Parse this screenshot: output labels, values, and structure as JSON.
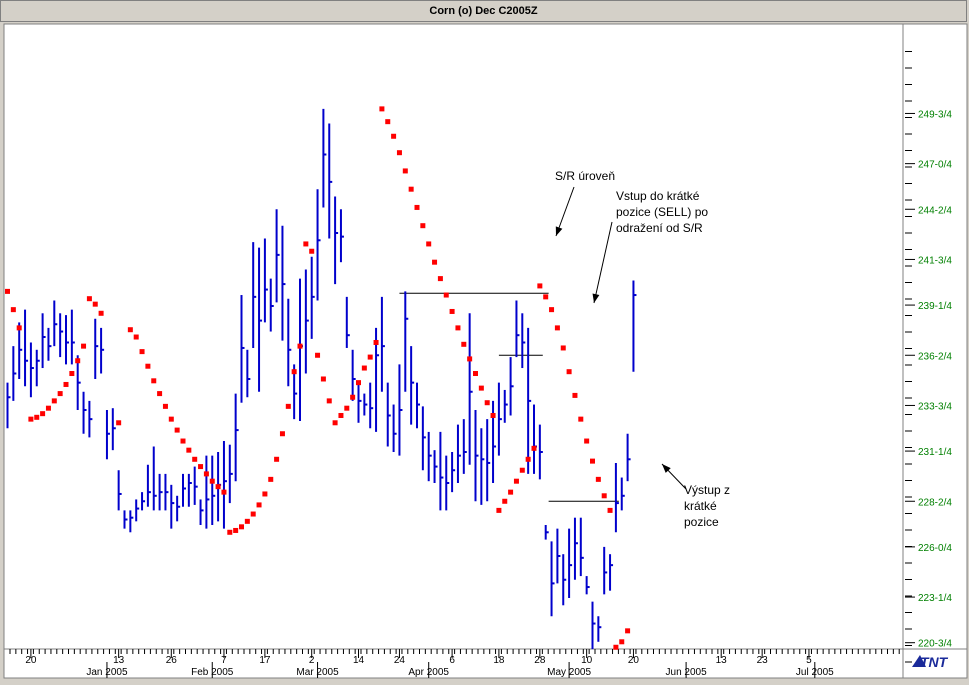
{
  "window": {
    "title": "Corn (o) Dec C2005Z"
  },
  "logo": {
    "text": "TNT"
  },
  "colors": {
    "bars": "#0000cc",
    "sar": "#ff0000",
    "axis_text": "#008000",
    "background": "#ffffff",
    "lines": "#000000"
  },
  "chart_data": {
    "type": "ohlc",
    "title": "Corn (o) Dec C2005Z",
    "y_ticks": [
      {
        "label": "220-3/4",
        "value": 220.75
      },
      {
        "label": "223-1/4",
        "value": 223.25
      },
      {
        "label": "226-0/4",
        "value": 226.0
      },
      {
        "label": "228-2/4",
        "value": 228.5
      },
      {
        "label": "231-1/4",
        "value": 231.25
      },
      {
        "label": "233-3/4",
        "value": 233.75
      },
      {
        "label": "236-2/4",
        "value": 236.5
      },
      {
        "label": "239-1/4",
        "value": 239.25
      },
      {
        "label": "241-3/4",
        "value": 241.75
      },
      {
        "label": "244-2/4",
        "value": 244.5
      },
      {
        "label": "247-0/4",
        "value": 247.0
      },
      {
        "label": "249-3/4",
        "value": 249.75
      }
    ],
    "x_ticks": [
      {
        "label": "20",
        "index": 4
      },
      {
        "label": "13",
        "index": 19
      },
      {
        "label": "26",
        "index": 28
      },
      {
        "label": "7",
        "index": 37
      },
      {
        "label": "17",
        "index": 44
      },
      {
        "label": "2",
        "index": 52
      },
      {
        "label": "14",
        "index": 60
      },
      {
        "label": "24",
        "index": 67
      },
      {
        "label": "6",
        "index": 76
      },
      {
        "label": "18",
        "index": 84
      },
      {
        "label": "28",
        "index": 91
      },
      {
        "label": "10",
        "index": 99
      },
      {
        "label": "20",
        "index": 107
      },
      {
        "label": "13",
        "index": 122
      },
      {
        "label": "23",
        "index": 129
      },
      {
        "label": "5",
        "index": 137
      }
    ],
    "month_labels": [
      {
        "label": "Jan 2005",
        "index": 17
      },
      {
        "label": "Feb 2005",
        "index": 35
      },
      {
        "label": "Mar 2005",
        "index": 53
      },
      {
        "label": "Apr 2005",
        "index": 72
      },
      {
        "label": "May 2005",
        "index": 96
      },
      {
        "label": "Jun 2005",
        "index": 116
      },
      {
        "label": "Jul 2005",
        "index": 138
      }
    ],
    "bars": [
      {
        "x": 0,
        "h": 235.0,
        "l": 232.5,
        "c": 234.2
      },
      {
        "x": 1,
        "h": 237.0,
        "l": 234.0,
        "c": 235.5
      },
      {
        "x": 2,
        "h": 238.3,
        "l": 235.2,
        "c": 236.8
      },
      {
        "x": 3,
        "h": 239.0,
        "l": 234.8,
        "c": 236.2
      },
      {
        "x": 4,
        "h": 237.2,
        "l": 234.2,
        "c": 235.8
      },
      {
        "x": 5,
        "h": 236.8,
        "l": 234.8,
        "c": 236.2
      },
      {
        "x": 6,
        "h": 238.8,
        "l": 235.8,
        "c": 237.5
      },
      {
        "x": 7,
        "h": 238.0,
        "l": 236.2,
        "c": 237.0
      },
      {
        "x": 8,
        "h": 239.5,
        "l": 237.0,
        "c": 238.2
      },
      {
        "x": 9,
        "h": 238.8,
        "l": 236.4,
        "c": 237.8
      },
      {
        "x": 10,
        "h": 238.7,
        "l": 236.0,
        "c": 237.2
      },
      {
        "x": 11,
        "h": 239.0,
        "l": 236.0,
        "c": 237.2
      },
      {
        "x": 12,
        "h": 236.5,
        "l": 233.5,
        "c": 235.0
      },
      {
        "x": 13,
        "h": 234.5,
        "l": 232.2,
        "c": 233.5
      },
      {
        "x": 14,
        "h": 234.0,
        "l": 232.0,
        "c": 233.0
      },
      {
        "x": 15,
        "h": 238.5,
        "l": 235.2,
        "c": 237.0
      },
      {
        "x": 16,
        "h": 238.0,
        "l": 235.5,
        "c": 236.8
      },
      {
        "x": 17,
        "h": 233.5,
        "l": 230.8,
        "c": 232.2
      },
      {
        "x": 18,
        "h": 233.6,
        "l": 231.3,
        "c": 232.5
      },
      {
        "x": 19,
        "h": 230.2,
        "l": 228.0,
        "c": 228.9
      },
      {
        "x": 20,
        "h": 228.0,
        "l": 227.0,
        "c": 227.5
      },
      {
        "x": 21,
        "h": 228.0,
        "l": 226.8,
        "c": 227.6
      },
      {
        "x": 22,
        "h": 228.6,
        "l": 227.4,
        "c": 228.1
      },
      {
        "x": 23,
        "h": 229.0,
        "l": 228.0,
        "c": 228.5
      },
      {
        "x": 24,
        "h": 230.5,
        "l": 228.2,
        "c": 229.0
      },
      {
        "x": 25,
        "h": 231.5,
        "l": 228.0,
        "c": 228.8
      },
      {
        "x": 26,
        "h": 230.0,
        "l": 228.0,
        "c": 229.0
      },
      {
        "x": 27,
        "h": 230.0,
        "l": 228.0,
        "c": 229.0
      },
      {
        "x": 28,
        "h": 229.4,
        "l": 227.0,
        "c": 228.4
      },
      {
        "x": 29,
        "h": 228.8,
        "l": 227.4,
        "c": 228.2
      },
      {
        "x": 30,
        "h": 230.0,
        "l": 228.2,
        "c": 229.2
      },
      {
        "x": 31,
        "h": 230.0,
        "l": 228.2,
        "c": 229.5
      },
      {
        "x": 32,
        "h": 230.4,
        "l": 228.3,
        "c": 229.3
      },
      {
        "x": 33,
        "h": 228.6,
        "l": 227.2,
        "c": 228.0
      },
      {
        "x": 34,
        "h": 231.0,
        "l": 227.0,
        "c": 228.6
      },
      {
        "x": 35,
        "h": 231.0,
        "l": 227.2,
        "c": 228.8
      },
      {
        "x": 36,
        "h": 231.2,
        "l": 227.4,
        "c": 229.4
      },
      {
        "x": 37,
        "h": 231.8,
        "l": 227.0,
        "c": 229.6
      },
      {
        "x": 38,
        "h": 231.6,
        "l": 228.4,
        "c": 230.0
      },
      {
        "x": 39,
        "h": 234.4,
        "l": 229.6,
        "c": 232.4
      },
      {
        "x": 40,
        "h": 239.8,
        "l": 233.9,
        "c": 236.9
      },
      {
        "x": 41,
        "h": 236.8,
        "l": 234.2,
        "c": 235.2
      },
      {
        "x": 42,
        "h": 242.7,
        "l": 236.9,
        "c": 239.7
      },
      {
        "x": 43,
        "h": 242.4,
        "l": 234.5,
        "c": 238.4
      },
      {
        "x": 44,
        "h": 242.9,
        "l": 238.3,
        "c": 240.1
      },
      {
        "x": 45,
        "h": 240.7,
        "l": 237.8,
        "c": 239.2
      },
      {
        "x": 46,
        "h": 244.5,
        "l": 239.4,
        "c": 242.0
      },
      {
        "x": 47,
        "h": 243.6,
        "l": 237.3,
        "c": 240.4
      },
      {
        "x": 48,
        "h": 239.6,
        "l": 234.8,
        "c": 236.8
      },
      {
        "x": 49,
        "h": 236.0,
        "l": 233.0,
        "c": 234.4
      },
      {
        "x": 50,
        "h": 240.7,
        "l": 232.9,
        "c": 237.0
      },
      {
        "x": 51,
        "h": 241.2,
        "l": 235.5,
        "c": 238.4
      },
      {
        "x": 52,
        "h": 241.9,
        "l": 237.4,
        "c": 239.7
      },
      {
        "x": 53,
        "h": 245.6,
        "l": 239.5,
        "c": 242.8
      },
      {
        "x": 54,
        "h": 250.0,
        "l": 244.6,
        "c": 247.5
      },
      {
        "x": 55,
        "h": 249.2,
        "l": 242.9,
        "c": 246.0
      },
      {
        "x": 56,
        "h": 245.2,
        "l": 240.4,
        "c": 243.2
      },
      {
        "x": 57,
        "h": 244.5,
        "l": 241.6,
        "c": 243.0
      },
      {
        "x": 58,
        "h": 239.7,
        "l": 236.9,
        "c": 237.6
      },
      {
        "x": 59,
        "h": 236.8,
        "l": 234.0,
        "c": 235.2
      },
      {
        "x": 60,
        "h": 235.0,
        "l": 232.8,
        "c": 234.0
      },
      {
        "x": 61,
        "h": 234.4,
        "l": 233.2,
        "c": 233.8
      },
      {
        "x": 62,
        "h": 235.0,
        "l": 232.5,
        "c": 233.6
      },
      {
        "x": 63,
        "h": 238.0,
        "l": 232.3,
        "c": 236.5
      },
      {
        "x": 64,
        "h": 239.7,
        "l": 234.5,
        "c": 237.0
      },
      {
        "x": 65,
        "h": 235.0,
        "l": 231.5,
        "c": 233.2
      },
      {
        "x": 66,
        "h": 233.8,
        "l": 231.2,
        "c": 232.2
      },
      {
        "x": 67,
        "h": 236.0,
        "l": 231.0,
        "c": 233.5
      },
      {
        "x": 68,
        "h": 240.0,
        "l": 234.5,
        "c": 238.5
      },
      {
        "x": 69,
        "h": 237.0,
        "l": 232.7,
        "c": 235.0
      },
      {
        "x": 70,
        "h": 235.0,
        "l": 232.5,
        "c": 233.8
      },
      {
        "x": 71,
        "h": 233.7,
        "l": 230.2,
        "c": 232.0
      },
      {
        "x": 72,
        "h": 232.3,
        "l": 229.6,
        "c": 231.0
      },
      {
        "x": 73,
        "h": 231.3,
        "l": 229.5,
        "c": 230.4
      },
      {
        "x": 74,
        "h": 232.3,
        "l": 228.0,
        "c": 229.8
      },
      {
        "x": 75,
        "h": 231.0,
        "l": 228.0,
        "c": 229.5
      },
      {
        "x": 76,
        "h": 231.2,
        "l": 229.0,
        "c": 230.2
      },
      {
        "x": 77,
        "h": 232.7,
        "l": 229.5,
        "c": 231.0
      },
      {
        "x": 78,
        "h": 233.0,
        "l": 230.0,
        "c": 231.2
      },
      {
        "x": 79,
        "h": 238.8,
        "l": 230.5,
        "c": 234.5
      },
      {
        "x": 80,
        "h": 233.5,
        "l": 228.5,
        "c": 231.0
      },
      {
        "x": 81,
        "h": 232.5,
        "l": 228.3,
        "c": 230.8
      },
      {
        "x": 82,
        "h": 233.0,
        "l": 228.5,
        "c": 230.6
      },
      {
        "x": 83,
        "h": 234.0,
        "l": 229.5,
        "c": 231.5
      },
      {
        "x": 84,
        "h": 235.0,
        "l": 231.0,
        "c": 233.0
      },
      {
        "x": 85,
        "h": 234.6,
        "l": 232.8,
        "c": 233.8
      },
      {
        "x": 86,
        "h": 236.4,
        "l": 233.2,
        "c": 234.8
      },
      {
        "x": 87,
        "h": 239.5,
        "l": 236.4,
        "c": 237.6
      },
      {
        "x": 88,
        "h": 238.8,
        "l": 235.8,
        "c": 237.2
      },
      {
        "x": 89,
        "h": 238.0,
        "l": 230.0,
        "c": 234.0
      },
      {
        "x": 90,
        "h": 233.8,
        "l": 230.0,
        "c": 231.5
      },
      {
        "x": 91,
        "h": 232.7,
        "l": 229.7,
        "c": 231.2
      },
      {
        "x": 92,
        "h": 227.2,
        "l": 226.4,
        "c": 226.8
      },
      {
        "x": 93,
        "h": 226.3,
        "l": 222.2,
        "c": 224.0
      },
      {
        "x": 94,
        "h": 227.0,
        "l": 224.0,
        "c": 225.5
      },
      {
        "x": 95,
        "h": 225.6,
        "l": 222.8,
        "c": 224.2
      },
      {
        "x": 96,
        "h": 227.0,
        "l": 223.2,
        "c": 225.0
      },
      {
        "x": 97,
        "h": 227.6,
        "l": 224.2,
        "c": 226.2
      },
      {
        "x": 98,
        "h": 227.6,
        "l": 224.4,
        "c": 225.4
      },
      {
        "x": 99,
        "h": 224.4,
        "l": 223.4,
        "c": 223.8
      },
      {
        "x": 100,
        "h": 223.0,
        "l": 220.4,
        "c": 221.8
      },
      {
        "x": 101,
        "h": 222.2,
        "l": 220.8,
        "c": 221.6
      },
      {
        "x": 102,
        "h": 226.0,
        "l": 223.4,
        "c": 224.6
      },
      {
        "x": 103,
        "h": 225.6,
        "l": 223.6,
        "c": 225.0
      },
      {
        "x": 104,
        "h": 230.6,
        "l": 226.8,
        "c": 228.4
      },
      {
        "x": 105,
        "h": 229.8,
        "l": 228.0,
        "c": 228.8
      },
      {
        "x": 106,
        "h": 232.2,
        "l": 229.6,
        "c": 230.8
      },
      {
        "x": 107,
        "h": 240.6,
        "l": 235.6,
        "c": 239.8
      }
    ],
    "sar": [
      {
        "x": 0,
        "y": 240.0
      },
      {
        "x": 1,
        "y": 239.0
      },
      {
        "x": 2,
        "y": 238.0
      },
      {
        "x": 4,
        "y": 233.0
      },
      {
        "x": 5,
        "y": 233.1
      },
      {
        "x": 6,
        "y": 233.3
      },
      {
        "x": 7,
        "y": 233.6
      },
      {
        "x": 8,
        "y": 234.0
      },
      {
        "x": 9,
        "y": 234.4
      },
      {
        "x": 10,
        "y": 234.9
      },
      {
        "x": 11,
        "y": 235.5
      },
      {
        "x": 12,
        "y": 236.2
      },
      {
        "x": 13,
        "y": 237.0
      },
      {
        "x": 14,
        "y": 239.6
      },
      {
        "x": 15,
        "y": 239.3
      },
      {
        "x": 16,
        "y": 238.8
      },
      {
        "x": 19,
        "y": 232.8
      },
      {
        "x": 21,
        "y": 237.9
      },
      {
        "x": 22,
        "y": 237.5
      },
      {
        "x": 23,
        "y": 236.7
      },
      {
        "x": 24,
        "y": 235.9
      },
      {
        "x": 25,
        "y": 235.1
      },
      {
        "x": 26,
        "y": 234.4
      },
      {
        "x": 27,
        "y": 233.7
      },
      {
        "x": 28,
        "y": 233.0
      },
      {
        "x": 29,
        "y": 232.4
      },
      {
        "x": 30,
        "y": 231.8
      },
      {
        "x": 31,
        "y": 231.3
      },
      {
        "x": 32,
        "y": 230.8
      },
      {
        "x": 33,
        "y": 230.4
      },
      {
        "x": 34,
        "y": 230.0
      },
      {
        "x": 35,
        "y": 229.6
      },
      {
        "x": 36,
        "y": 229.3
      },
      {
        "x": 37,
        "y": 229.0
      },
      {
        "x": 38,
        "y": 226.8
      },
      {
        "x": 39,
        "y": 226.9
      },
      {
        "x": 40,
        "y": 227.1
      },
      {
        "x": 41,
        "y": 227.4
      },
      {
        "x": 42,
        "y": 227.8
      },
      {
        "x": 43,
        "y": 228.3
      },
      {
        "x": 44,
        "y": 228.9
      },
      {
        "x": 45,
        "y": 229.7
      },
      {
        "x": 46,
        "y": 230.8
      },
      {
        "x": 47,
        "y": 232.2
      },
      {
        "x": 48,
        "y": 233.7
      },
      {
        "x": 49,
        "y": 235.6
      },
      {
        "x": 50,
        "y": 237.0
      },
      {
        "x": 51,
        "y": 242.6
      },
      {
        "x": 52,
        "y": 242.2
      },
      {
        "x": 53,
        "y": 236.5
      },
      {
        "x": 54,
        "y": 235.2
      },
      {
        "x": 55,
        "y": 234.0
      },
      {
        "x": 56,
        "y": 232.8
      },
      {
        "x": 57,
        "y": 233.2
      },
      {
        "x": 58,
        "y": 233.6
      },
      {
        "x": 59,
        "y": 234.2
      },
      {
        "x": 60,
        "y": 235.0
      },
      {
        "x": 61,
        "y": 235.8
      },
      {
        "x": 62,
        "y": 236.4
      },
      {
        "x": 63,
        "y": 237.2
      },
      {
        "x": 64,
        "y": 250.0
      },
      {
        "x": 65,
        "y": 249.3
      },
      {
        "x": 66,
        "y": 248.5
      },
      {
        "x": 67,
        "y": 247.6
      },
      {
        "x": 68,
        "y": 246.6
      },
      {
        "x": 69,
        "y": 245.6
      },
      {
        "x": 70,
        "y": 244.6
      },
      {
        "x": 71,
        "y": 243.6
      },
      {
        "x": 72,
        "y": 242.6
      },
      {
        "x": 73,
        "y": 241.6
      },
      {
        "x": 74,
        "y": 240.7
      },
      {
        "x": 75,
        "y": 239.8
      },
      {
        "x": 76,
        "y": 238.9
      },
      {
        "x": 77,
        "y": 238.0
      },
      {
        "x": 78,
        "y": 237.1
      },
      {
        "x": 79,
        "y": 236.3
      },
      {
        "x": 80,
        "y": 235.5
      },
      {
        "x": 81,
        "y": 234.7
      },
      {
        "x": 82,
        "y": 233.9
      },
      {
        "x": 83,
        "y": 233.2
      },
      {
        "x": 84,
        "y": 228.0
      },
      {
        "x": 85,
        "y": 228.5
      },
      {
        "x": 86,
        "y": 229.0
      },
      {
        "x": 87,
        "y": 229.6
      },
      {
        "x": 88,
        "y": 230.2
      },
      {
        "x": 89,
        "y": 230.8
      },
      {
        "x": 90,
        "y": 231.4
      },
      {
        "x": 91,
        "y": 240.3
      },
      {
        "x": 92,
        "y": 239.7
      },
      {
        "x": 93,
        "y": 239.0
      },
      {
        "x": 94,
        "y": 238.0
      },
      {
        "x": 95,
        "y": 236.9
      },
      {
        "x": 96,
        "y": 235.6
      },
      {
        "x": 97,
        "y": 234.3
      },
      {
        "x": 98,
        "y": 233.0
      },
      {
        "x": 99,
        "y": 231.8
      },
      {
        "x": 100,
        "y": 230.7
      },
      {
        "x": 101,
        "y": 229.7
      },
      {
        "x": 102,
        "y": 228.8
      },
      {
        "x": 103,
        "y": 228.0
      },
      {
        "x": 104,
        "y": 220.5
      },
      {
        "x": 105,
        "y": 220.8
      },
      {
        "x": 106,
        "y": 221.4
      }
    ],
    "annotations": [
      {
        "id": "sr-level",
        "lines": [
          "S/R úroveň"
        ]
      },
      {
        "id": "entry",
        "lines": [
          "Vstup do krátké",
          "pozice (SELL) po",
          "odražení od S/R"
        ]
      },
      {
        "id": "exit",
        "lines": [
          "Výstup z",
          "krátké",
          "pozice"
        ]
      }
    ],
    "hlines": [
      {
        "y": 239.9,
        "x0": 67,
        "x1": 92.5
      },
      {
        "y": 236.5,
        "x0": 84,
        "x1": 91.5
      },
      {
        "y": 228.5,
        "x0": 92.5,
        "x1": 104.5
      }
    ]
  }
}
